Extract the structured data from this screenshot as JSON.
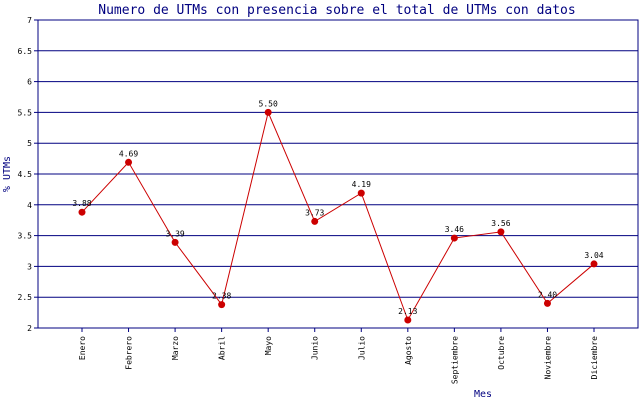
{
  "chart_data": {
    "type": "line",
    "title": "Numero de UTMs con presencia sobre el total de UTMs con datos",
    "xlabel": "Mes",
    "ylabel": "% UTMs",
    "categories": [
      "Enero",
      "Febrero",
      "Marzo",
      "Abril",
      "Mayo",
      "Junio",
      "Julio",
      "Agosto",
      "Septiembre",
      "Octubre",
      "Noviembre",
      "Diciembre"
    ],
    "series": [
      {
        "values": [
          3.88,
          4.69,
          3.39,
          2.38,
          5.5,
          3.73,
          4.19,
          2.13,
          3.46,
          3.56,
          2.4,
          3.04
        ],
        "labels": [
          "3.88",
          "4.69",
          "3.39",
          "2.38",
          "5.50",
          "3.73",
          "4.19",
          "2.13",
          "3.46",
          "3.56",
          "2.40",
          "3.04"
        ]
      }
    ],
    "ylim": [
      2,
      7
    ],
    "yticks": [
      "2",
      "2.5",
      "3",
      "3.5",
      "4",
      "4.5",
      "5",
      "5.5",
      "6",
      "6.5",
      "7"
    ],
    "grid": true,
    "colors": {
      "line": "#cc0000",
      "marker": "#cc0000",
      "grid": "#000080",
      "axis": "#000080",
      "text": "#000080"
    }
  }
}
